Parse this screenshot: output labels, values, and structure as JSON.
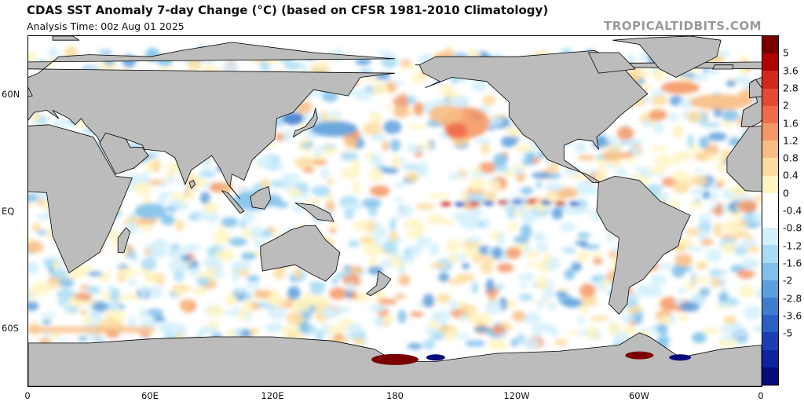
{
  "title": "CDAS SST Anomaly 7-day Change (°C) (based on CFSR 1981-2010 Climatology)",
  "subtitle": "Analysis Time: 00z Aug 01 2025",
  "watermark": "TROPICALTIDBITS.COM",
  "lat_labels": [
    "60N",
    "EQ",
    "60S"
  ],
  "lon_labels": [
    "0",
    "60E",
    "120E",
    "180",
    "120W",
    "60W",
    "0"
  ],
  "colorbar": {
    "tick_labels": [
      "5",
      "3.6",
      "2.8",
      "2",
      "1.6",
      "1.2",
      "0.8",
      "0.4",
      "0",
      "-0.4",
      "-0.8",
      "-1.2",
      "-1.6",
      "-2",
      "-2.8",
      "-3.6",
      "-5"
    ],
    "colors": [
      "#7a0000",
      "#b00000",
      "#d2281c",
      "#e34a33",
      "#ef6c4a",
      "#f59866",
      "#f8bd84",
      "#fbdc9e",
      "#fff4c2",
      "#ffffff",
      "#ffffff",
      "#d4f0fb",
      "#a8dcf4",
      "#7fc1ea",
      "#5d9fdc",
      "#3f7dd0",
      "#2a5fc4",
      "#1b3fb3",
      "#0e23a0",
      "#050b7a"
    ]
  },
  "map": {
    "land_color": "#bcbcbc",
    "ocean_color": "#ffffff",
    "warm_color": "#f4a25c",
    "cool_color": "#7ab7e8",
    "coast_color": "#000000"
  }
}
